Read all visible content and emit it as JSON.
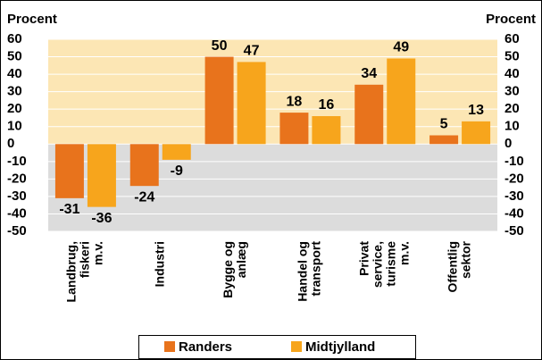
{
  "chart_data": {
    "type": "bar",
    "ylabel": "Procent",
    "y2label": "Procent",
    "categories": [
      [
        "Landbrug,",
        "fiskeri",
        "m.v."
      ],
      [
        "Industri"
      ],
      [
        "Bygge og",
        "anlæg"
      ],
      [
        "Handel og",
        "transport"
      ],
      [
        "Privat",
        "service,",
        "turisme",
        "m.v."
      ],
      [
        "Offentlig",
        "sektor"
      ]
    ],
    "series": [
      {
        "name": "Randers",
        "color": "#e8731c",
        "values": [
          -31,
          -24,
          50,
          18,
          34,
          5
        ]
      },
      {
        "name": "Midtjylland",
        "color": "#f7a51c",
        "values": [
          -36,
          -9,
          47,
          16,
          49,
          13
        ]
      }
    ],
    "ylim": [
      -50,
      60
    ],
    "yticks": [
      -50,
      -40,
      -30,
      -20,
      -10,
      0,
      10,
      20,
      30,
      40,
      50,
      60
    ],
    "y2lim": [
      -50,
      60
    ],
    "y2ticks": [
      -50,
      -40,
      -30,
      -20,
      -10,
      0,
      10,
      20,
      30,
      40,
      50,
      60
    ],
    "grid": true
  }
}
